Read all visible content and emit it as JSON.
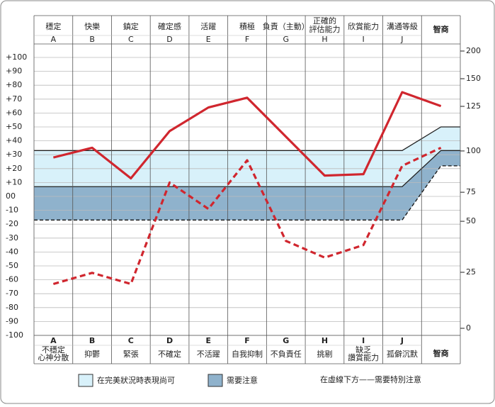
{
  "chart_data": {
    "type": "line",
    "columns": [
      {
        "top": [
          "穩定"
        ],
        "letter": "A",
        "bottom": [
          "不穩定",
          "心神分散"
        ]
      },
      {
        "top": [
          "快樂"
        ],
        "letter": "B",
        "bottom": [
          "抑鬱"
        ]
      },
      {
        "top": [
          "鎮定"
        ],
        "letter": "C",
        "bottom": [
          "緊張"
        ]
      },
      {
        "top": [
          "確定感"
        ],
        "letter": "D",
        "bottom": [
          "不確定"
        ]
      },
      {
        "top": [
          "活躍"
        ],
        "letter": "E",
        "bottom": [
          "不活躍"
        ]
      },
      {
        "top": [
          "積極"
        ],
        "letter": "F",
        "bottom": [
          "自我抑制"
        ]
      },
      {
        "top": [
          "負責（主動）"
        ],
        "letter": "G",
        "bottom": [
          "不負責任"
        ]
      },
      {
        "top": [
          "正確的",
          "評估能力"
        ],
        "letter": "H",
        "bottom": [
          "挑剔"
        ]
      },
      {
        "top": [
          "欣賞能力"
        ],
        "letter": "I",
        "bottom": [
          "缺乏",
          "讚賞能力"
        ]
      },
      {
        "top": [
          "溝通等級"
        ],
        "letter": "J",
        "bottom": [
          "孤僻沉默"
        ]
      },
      {
        "top": [
          "智商"
        ],
        "bottom": [
          "智商"
        ]
      }
    ],
    "series": [
      {
        "color": "#d0262e",
        "dashed": false,
        "values": [
          28,
          35,
          13,
          47,
          64,
          71,
          43,
          15,
          16,
          75,
          65
        ]
      },
      {
        "color": "#d0262e",
        "dashed": true,
        "values": [
          -63,
          -55,
          -63,
          10,
          -9,
          26,
          -32,
          -44,
          -35,
          22,
          35
        ]
      }
    ],
    "bands": {
      "colors": [
        "#d8f1fa",
        "#8fb2cc"
      ],
      "top": [
        33,
        33,
        33,
        33,
        33,
        33,
        33,
        33,
        33,
        33,
        50
      ],
      "middle": [
        7,
        7,
        7,
        7,
        7,
        7,
        7,
        7,
        7,
        7,
        33
      ],
      "dashed": [
        -17,
        -17,
        -17,
        -17,
        -17,
        -17,
        -17,
        -17,
        -17,
        -17,
        22
      ]
    },
    "ylim": [
      -100,
      100
    ],
    "yticks": [
      {
        "value": 100,
        "label": "+100"
      },
      {
        "value": 90,
        "label": "+90"
      },
      {
        "value": 80,
        "label": "+80"
      },
      {
        "value": 70,
        "label": "+70"
      },
      {
        "value": 60,
        "label": "+60"
      },
      {
        "value": 50,
        "label": "+50"
      },
      {
        "value": 40,
        "label": "+40"
      },
      {
        "value": 30,
        "label": "+30"
      },
      {
        "value": 20,
        "label": "+20"
      },
      {
        "value": 10,
        "label": "+10"
      },
      {
        "value": 0,
        "label": "00"
      },
      -10,
      -20,
      -30,
      -40,
      -50,
      -60,
      -70,
      -80,
      -90,
      -100
    ],
    "y2ticks": [
      200,
      150,
      125,
      100,
      75,
      50,
      25,
      0
    ],
    "y2_on_y": [
      104.6,
      84.7,
      64.8,
      32.7,
      3,
      -17.9,
      -54.6,
      -94.9
    ],
    "legend": [
      "在完美狀況時表現尚可",
      "需要注意",
      "在虛線下方——需要特別注意"
    ],
    "grid": true
  }
}
